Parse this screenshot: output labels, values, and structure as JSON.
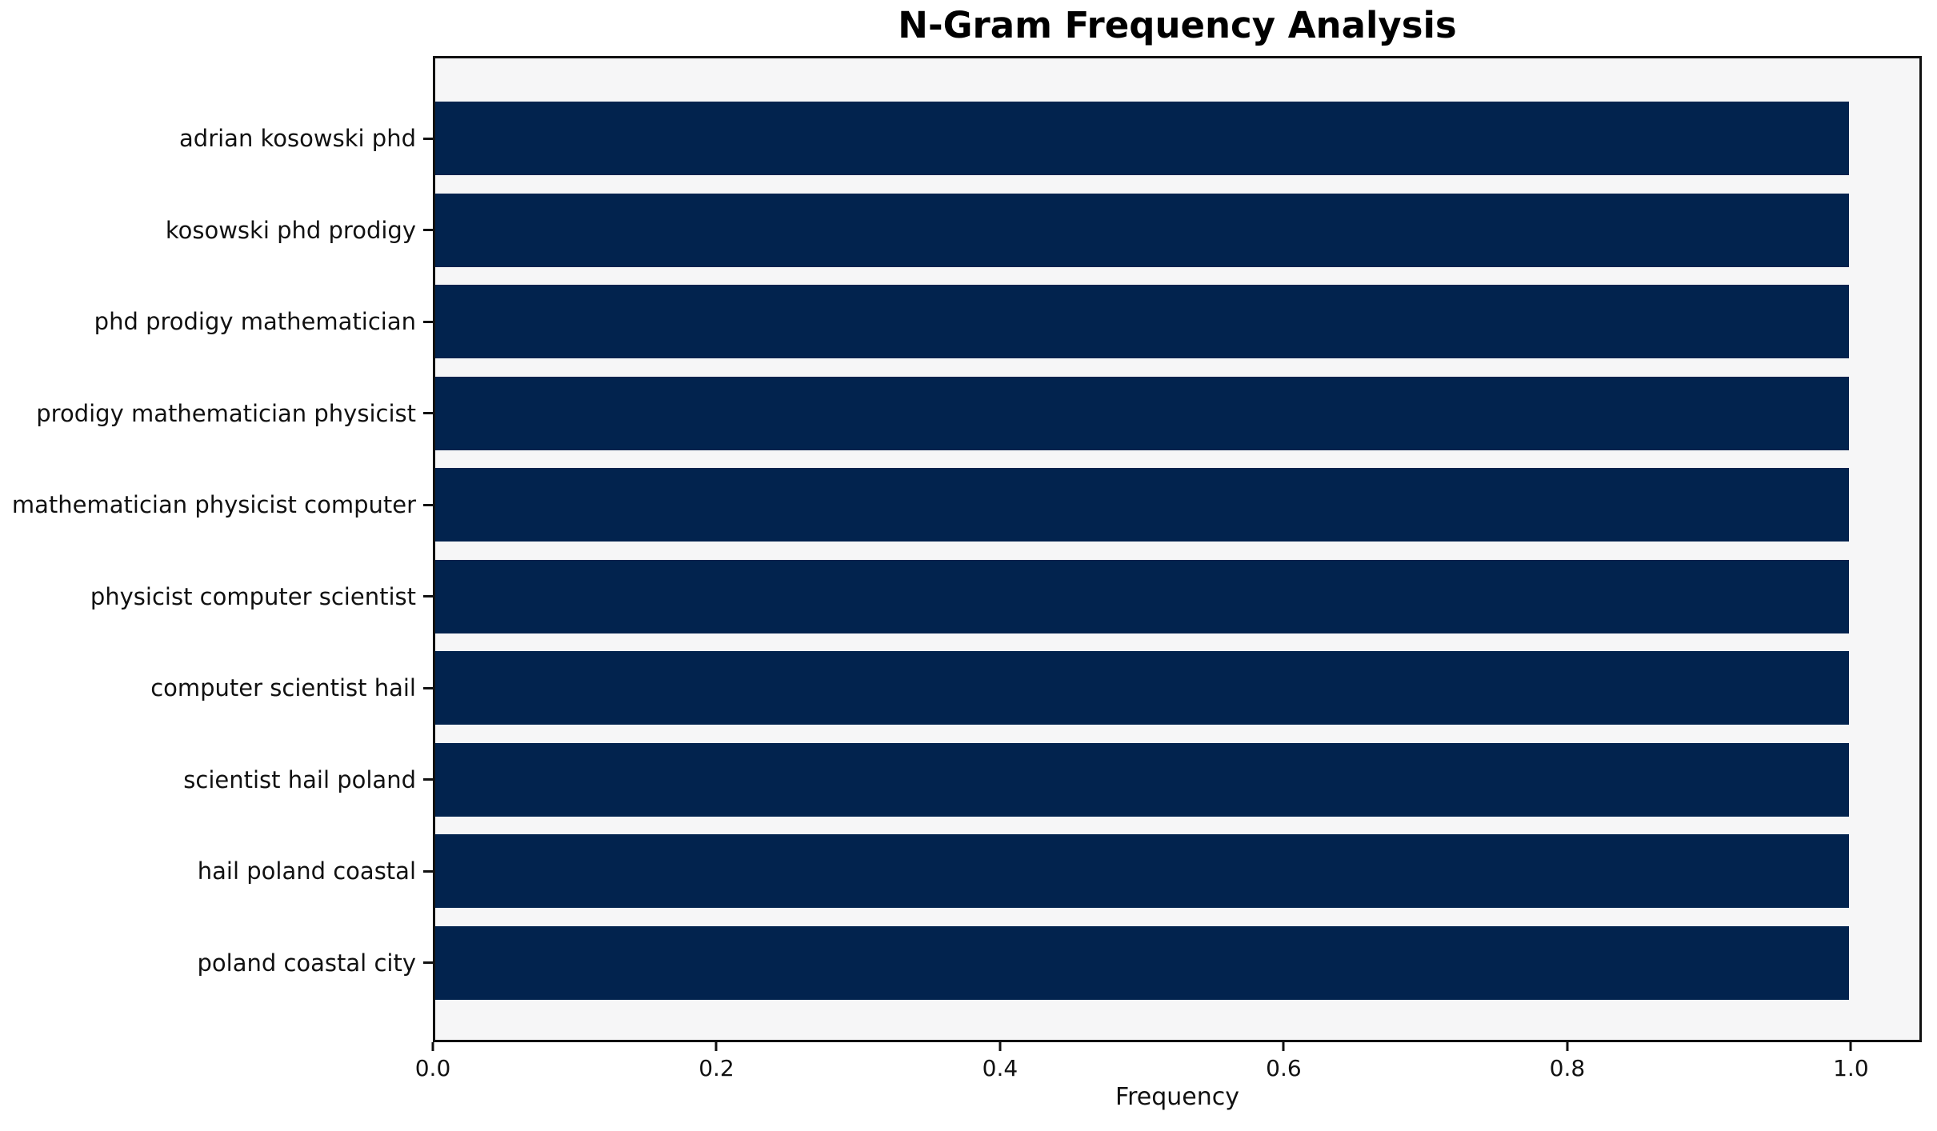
{
  "chart_data": {
    "type": "bar",
    "orientation": "horizontal",
    "title": "N-Gram Frequency Analysis",
    "xlabel": "Frequency",
    "ylabel": "",
    "categories": [
      "adrian kosowski phd",
      "kosowski phd prodigy",
      "phd prodigy mathematician",
      "prodigy mathematician physicist",
      "mathematician physicist computer",
      "physicist computer scientist",
      "computer scientist hail",
      "scientist hail poland",
      "hail poland coastal",
      "poland coastal city"
    ],
    "values": [
      1.0,
      1.0,
      1.0,
      1.0,
      1.0,
      1.0,
      1.0,
      1.0,
      1.0,
      1.0
    ],
    "xlim": [
      0.0,
      1.05
    ],
    "xticks": [
      0.0,
      0.2,
      0.4,
      0.6,
      0.8,
      1.0
    ],
    "grid": false,
    "legend": false,
    "bar_color": "#02234e",
    "plot_bg": "#f6f6f7",
    "spine_color": "#111111",
    "text_color": "#111111",
    "figure_bg": "#ffffff"
  }
}
